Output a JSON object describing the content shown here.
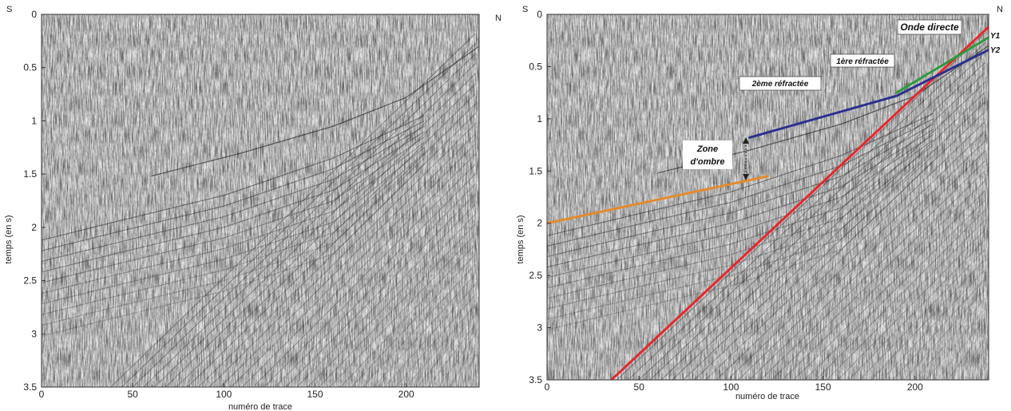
{
  "chart_data": [
    {
      "type": "seismic section",
      "panel": "left",
      "xlabel": "numéro de trace",
      "ylabel": "temps (en s)",
      "xlim": [
        0,
        240
      ],
      "ylim": [
        3.5,
        0
      ],
      "x_ticks": [
        0,
        50,
        100,
        150,
        200
      ],
      "y_ticks": [
        {
          "value": 0,
          "label": "0"
        },
        {
          "value": 0.5,
          "label": "0.5"
        },
        {
          "value": 1,
          "label": "1"
        },
        {
          "value": 1.5,
          "label": "1.5"
        },
        {
          "value": 2,
          "label": "2"
        },
        {
          "value": 2.5,
          "label": "2.5"
        },
        {
          "value": 3,
          "label": "3"
        },
        {
          "value": 3.5,
          "label": "3.5"
        }
      ],
      "corner_left": "S",
      "corner_right": "N",
      "grid": false
    },
    {
      "type": "seismic section",
      "panel": "right",
      "xlabel": "numéro de trace",
      "ylabel": "temps (en s)",
      "xlim": [
        0,
        240
      ],
      "ylim": [
        3.5,
        0
      ],
      "x_ticks": [
        0,
        50,
        100,
        150,
        200
      ],
      "y_ticks": [
        {
          "value": 0,
          "label": "0"
        },
        {
          "value": 0.5,
          "label": "0.5"
        },
        {
          "value": 1,
          "label": "1"
        },
        {
          "value": 1.5,
          "label": "1.5"
        },
        {
          "value": 2,
          "label": "2"
        },
        {
          "value": 2.5,
          "label": "2.5"
        },
        {
          "value": 3,
          "label": "3"
        },
        {
          "value": 3.5,
          "label": "3.5"
        }
      ],
      "corner_left": "S",
      "corner_right": "N",
      "grid": false,
      "picked_lines": [
        {
          "name": "Onde directe",
          "color": "#e8262a",
          "points": [
            [
              35,
              3.5
            ],
            [
              240,
              0.12
            ]
          ]
        },
        {
          "name": "1ère réfractée",
          "color": "#2d9a3c",
          "points": [
            [
              190,
              0.75
            ],
            [
              240,
              0.22
            ]
          ]
        },
        {
          "name": "2ème réfractée",
          "color": "#2b2f8f",
          "points": [
            [
              110,
              1.18
            ],
            [
              190,
              0.78
            ],
            [
              240,
              0.34
            ]
          ]
        },
        {
          "name": "",
          "color": "#e48a2a",
          "points": [
            [
              0,
              2.0
            ],
            [
              120,
              1.55
            ]
          ]
        }
      ],
      "annotations": {
        "direct": "Onde directe",
        "refr1": "1ère réfractée",
        "refr2": "2ème réfractée",
        "shadow_line1": "Zone",
        "shadow_line2": "d'ombre",
        "y1": "Y1",
        "y2": "Y2"
      }
    }
  ]
}
